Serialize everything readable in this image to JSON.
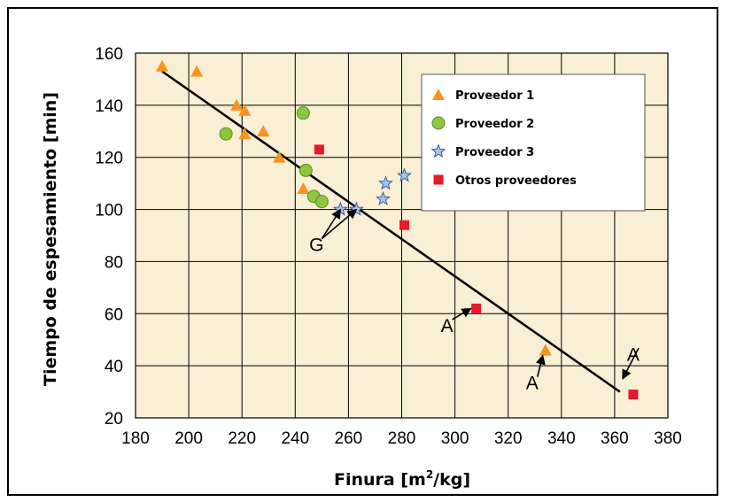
{
  "chart_data": {
    "type": "scatter",
    "xlabel_main": "Finura [m",
    "xlabel_sup": "2",
    "xlabel_end": "/kg]",
    "ylabel": "Tiempo de espesamiento [min]",
    "xlim": [
      180,
      380
    ],
    "ylim": [
      20,
      160
    ],
    "x_ticks": [
      "180",
      "200",
      "220",
      "240",
      "260",
      "280",
      "300",
      "320",
      "340",
      "360",
      "380"
    ],
    "y_ticks": [
      "20",
      "40",
      "60",
      "80",
      "100",
      "120",
      "140",
      "160"
    ],
    "grid": true,
    "legend_position": "top-right",
    "series": [
      {
        "name": "Proveedor 1",
        "marker": "triangle",
        "color": "#f7941d",
        "points": [
          [
            190,
            155
          ],
          [
            203,
            153
          ],
          [
            218,
            140
          ],
          [
            221,
            138
          ],
          [
            221,
            129
          ],
          [
            228,
            130
          ],
          [
            234,
            120
          ],
          [
            243,
            108
          ],
          [
            334,
            46
          ]
        ]
      },
      {
        "name": "Proveedor 2",
        "marker": "circle",
        "color": "#8dc63f",
        "points": [
          [
            214,
            129
          ],
          [
            243,
            137
          ],
          [
            244,
            115
          ],
          [
            247,
            105
          ],
          [
            250,
            103
          ]
        ]
      },
      {
        "name": "Proveedor 3",
        "marker": "star",
        "color": "#a9c4eb",
        "points": [
          [
            257,
            100
          ],
          [
            263,
            100
          ],
          [
            273,
            104
          ],
          [
            274,
            110
          ],
          [
            281,
            113
          ]
        ]
      },
      {
        "name": "Otros proveedores",
        "marker": "square",
        "color": "#e8192c",
        "points": [
          [
            249,
            123
          ],
          [
            281,
            94
          ],
          [
            308,
            62
          ],
          [
            367,
            29
          ]
        ]
      }
    ],
    "trend_line": [
      [
        190,
        153
      ],
      [
        362,
        30
      ]
    ],
    "annotations": [
      {
        "text": "G",
        "at": [
          248,
          84
        ],
        "arrows_to": [
          [
            257,
            100
          ],
          [
            263,
            100
          ]
        ]
      },
      {
        "text": "A",
        "at": [
          297,
          53
        ],
        "arrows_to": [
          [
            306,
            62
          ]
        ]
      },
      {
        "text": "A",
        "at": [
          329,
          31
        ],
        "arrows_to": [
          [
            333,
            44
          ]
        ]
      },
      {
        "text": "A",
        "at": [
          367,
          42
        ],
        "arrows_to": [
          [
            363,
            35
          ]
        ]
      }
    ]
  }
}
